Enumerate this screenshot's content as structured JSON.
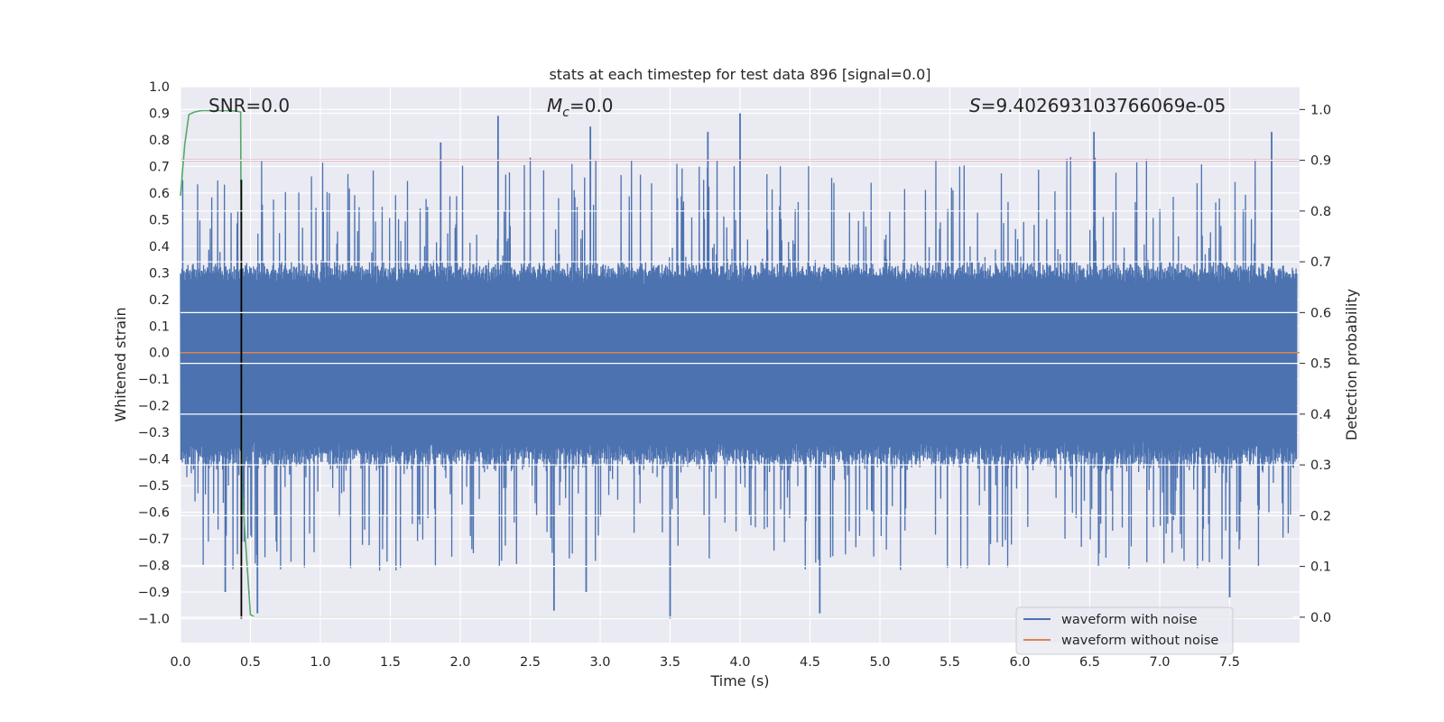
{
  "chart_data": {
    "type": "line",
    "title": "stats at each timestep for test data 896 [signal=0.0]",
    "xlabel": "Time (s)",
    "ylabel": "Whitened strain",
    "y2label": "Detection probability",
    "xlim": [
      0.0,
      8.0
    ],
    "ylim": [
      -1.09,
      1.0
    ],
    "y2lim": [
      -0.05,
      1.045
    ],
    "xticks": [
      0.0,
      0.5,
      1.0,
      1.5,
      2.0,
      2.5,
      3.0,
      3.5,
      4.0,
      4.5,
      5.0,
      5.5,
      6.0,
      6.5,
      7.0,
      7.5
    ],
    "xtick_labels": [
      "0.0",
      "0.5",
      "1.0",
      "1.5",
      "2.0",
      "2.5",
      "3.0",
      "3.5",
      "4.0",
      "4.5",
      "5.0",
      "5.5",
      "6.0",
      "6.5",
      "7.0",
      "7.5"
    ],
    "yticks": [
      1.0,
      0.9,
      0.8,
      0.7,
      0.6,
      0.5,
      0.4,
      0.3,
      0.2,
      0.1,
      0.0,
      -0.1,
      -0.2,
      -0.3,
      -0.4,
      -0.5,
      -0.6,
      -0.7,
      -0.8,
      -0.9,
      -1.0
    ],
    "ytick_labels": [
      "1.0",
      "0.9",
      "0.8",
      "0.7",
      "0.6",
      "0.5",
      "0.4",
      "0.3",
      "0.2",
      "0.1",
      "0.0",
      "−0.1",
      "−0.2",
      "−0.3",
      "−0.4",
      "−0.5",
      "−0.6",
      "−0.7",
      "−0.8",
      "−0.9",
      "−1.0"
    ],
    "y2ticks": [
      1.0,
      0.9,
      0.8,
      0.7,
      0.6,
      0.5,
      0.4,
      0.3,
      0.2,
      0.1,
      0.0
    ],
    "y2tick_labels": [
      "1.0",
      "0.9",
      "0.8",
      "0.7",
      "0.6",
      "0.5",
      "0.4",
      "0.3",
      "0.2",
      "0.1",
      "0.0"
    ],
    "grid": true,
    "annotations": {
      "snr": "SNR=0.0",
      "mc_symbol": "M",
      "mc_subscript": "c",
      "mc_value": "=0.0",
      "s_symbol": "S",
      "s_value": "=9.402693103766069e-05"
    },
    "legend": {
      "placement": "lower-right",
      "entries": [
        {
          "label": "waveform with noise",
          "color": "#4c72b0"
        },
        {
          "label": "waveform without noise",
          "color": "#dd8452"
        }
      ]
    },
    "series": [
      {
        "name": "waveform with noise",
        "color": "#4c72b0",
        "axis": "left",
        "kind": "noise",
        "typical_range": [
          -0.44,
          0.34
        ],
        "spike_peaks": [
          {
            "x": 2.27,
            "y": 0.89
          },
          {
            "x": 4.0,
            "y": 0.9
          },
          {
            "x": 2.93,
            "y": 0.85
          },
          {
            "x": 3.77,
            "y": 0.83
          },
          {
            "x": 6.53,
            "y": 0.83
          },
          {
            "x": 1.86,
            "y": 0.79
          },
          {
            "x": 7.8,
            "y": 0.83
          },
          {
            "x": 3.5,
            "y": -1.0
          },
          {
            "x": 4.57,
            "y": -0.98
          },
          {
            "x": 2.67,
            "y": -0.97
          },
          {
            "x": 0.55,
            "y": -0.98
          },
          {
            "x": 0.32,
            "y": -0.9
          },
          {
            "x": 7.5,
            "y": -0.92
          },
          {
            "x": 2.9,
            "y": -0.9
          }
        ]
      },
      {
        "name": "waveform without noise",
        "color": "#dd8452",
        "axis": "left",
        "x": [
          0.0,
          8.0
        ],
        "y": [
          0.0,
          0.0
        ]
      },
      {
        "name": "detection probability",
        "color": "#55a868",
        "axis": "right",
        "x": [
          0.0,
          0.03,
          0.06,
          0.1,
          0.15,
          0.3,
          0.4,
          0.43,
          0.44,
          0.5,
          0.53,
          0.6,
          1.0,
          7.95
        ],
        "y": [
          0.83,
          0.93,
          0.99,
          0.995,
          0.998,
          0.998,
          0.997,
          0.995,
          0.25,
          0.005,
          0.0,
          0.0,
          0.0,
          0.0
        ]
      },
      {
        "name": "threshold",
        "color": "#c44e52",
        "axis": "right",
        "x": [
          0.0,
          8.0
        ],
        "y": [
          0.9,
          0.9
        ]
      },
      {
        "name": "detection time marker",
        "color": "#000000",
        "axis": "left",
        "x": [
          0.435,
          0.435
        ],
        "y": [
          -1.0,
          0.65
        ]
      }
    ]
  }
}
